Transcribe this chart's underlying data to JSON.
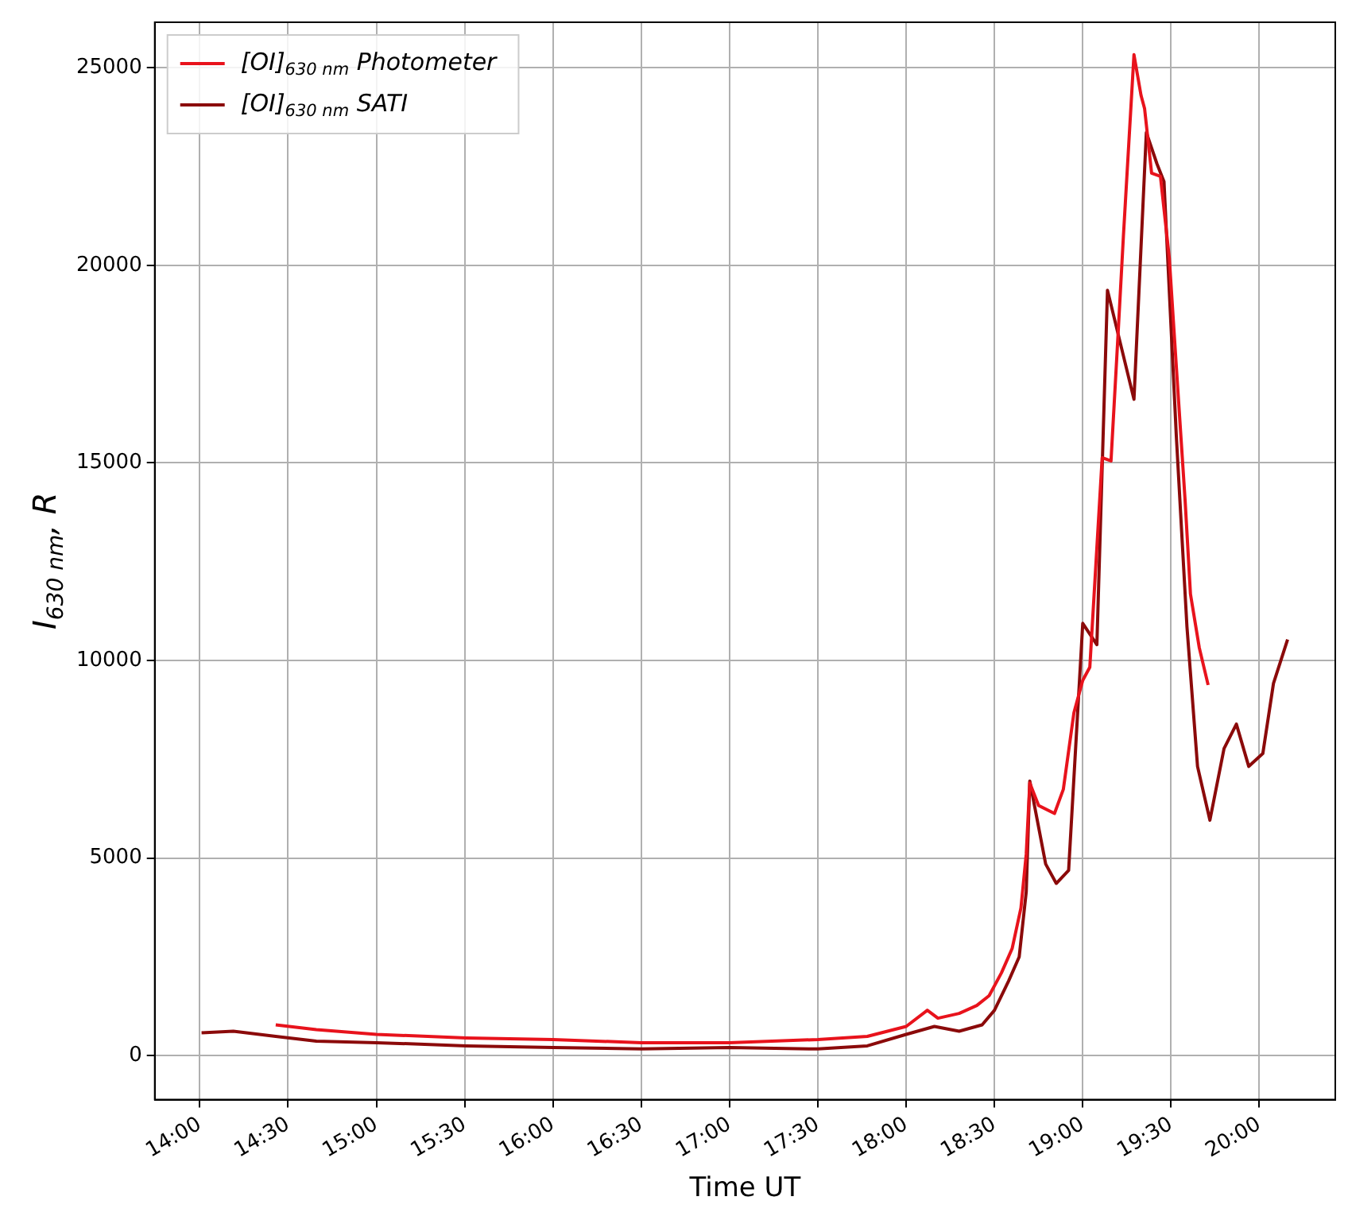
{
  "chart_data": {
    "type": "line",
    "xlabel": "Time UT",
    "ylabel": "I$_{630 nm}$, R",
    "xlim": [
      13.745,
      20.43
    ],
    "ylim": [
      -1110,
      26150
    ],
    "xticks": [
      {
        "value": 14,
        "label": "14:00"
      },
      {
        "value": 14.5,
        "label": "14:30"
      },
      {
        "value": 15,
        "label": "15:00"
      },
      {
        "value": 15.5,
        "label": "15:30"
      },
      {
        "value": 16,
        "label": "16:00"
      },
      {
        "value": 16.5,
        "label": "16:30"
      },
      {
        "value": 17,
        "label": "17:00"
      },
      {
        "value": 17.5,
        "label": "17:30"
      },
      {
        "value": 18,
        "label": "18:00"
      },
      {
        "value": 18.5,
        "label": "18:30"
      },
      {
        "value": 19,
        "label": "19:00"
      },
      {
        "value": 19.5,
        "label": "19:30"
      },
      {
        "value": 20,
        "label": "20:00"
      }
    ],
    "yticks": [
      0,
      5000,
      10000,
      15000,
      20000,
      25000
    ],
    "grid": true,
    "legend": "top left",
    "marker": "none",
    "line_style": "solid",
    "series": [
      {
        "name": "[OI]$_{630 nm}$ Photometer",
        "color": "#e8131c",
        "x": [
          14.43,
          14.66,
          15.0,
          15.51,
          16.0,
          16.5,
          17.0,
          17.5,
          17.78,
          18.0,
          18.12,
          18.18,
          18.3,
          18.4,
          18.47,
          18.54,
          18.6,
          18.65,
          18.68,
          18.7,
          18.75,
          18.84,
          18.89,
          18.95,
          19.0,
          19.04,
          19.11,
          19.16,
          19.2,
          19.23,
          19.29,
          19.33,
          19.35,
          19.39,
          19.44,
          19.49,
          19.53,
          19.58,
          19.61,
          19.66,
          19.71
        ],
        "values": [
          780,
          660,
          540,
          450,
          410,
          330,
          330,
          410,
          490,
          740,
          1150,
          950,
          1070,
          1270,
          1520,
          2100,
          2710,
          3740,
          5100,
          6900,
          6330,
          6130,
          6740,
          8680,
          9500,
          9830,
          15130,
          15050,
          18260,
          20720,
          25330,
          24300,
          23970,
          22330,
          22250,
          20190,
          17430,
          14020,
          11680,
          10320,
          9380
        ]
      },
      {
        "name": "[OI]$_{630 nm}$ SATI",
        "color": "#8b0a0a",
        "x": [
          14.01,
          14.19,
          14.43,
          14.66,
          15.0,
          15.51,
          16.0,
          16.5,
          17.0,
          17.5,
          17.78,
          18.0,
          18.16,
          18.3,
          18.43,
          18.5,
          18.58,
          18.64,
          18.68,
          18.7,
          18.79,
          18.85,
          18.92,
          19.0,
          19.08,
          19.14,
          19.29,
          19.36,
          19.42,
          19.46,
          19.53,
          19.59,
          19.65,
          19.72,
          19.8,
          19.87,
          19.94,
          20.02,
          20.08,
          20.16
        ],
        "values": [
          580,
          620,
          490,
          370,
          330,
          250,
          210,
          170,
          210,
          170,
          250,
          540,
          740,
          620,
          780,
          1150,
          1890,
          2500,
          4150,
          6950,
          4850,
          4360,
          4690,
          10940,
          10400,
          19370,
          16610,
          23360,
          22570,
          22120,
          15670,
          10860,
          7320,
          5960,
          7770,
          8390,
          7320,
          7650,
          9420,
          10530
        ]
      }
    ]
  }
}
